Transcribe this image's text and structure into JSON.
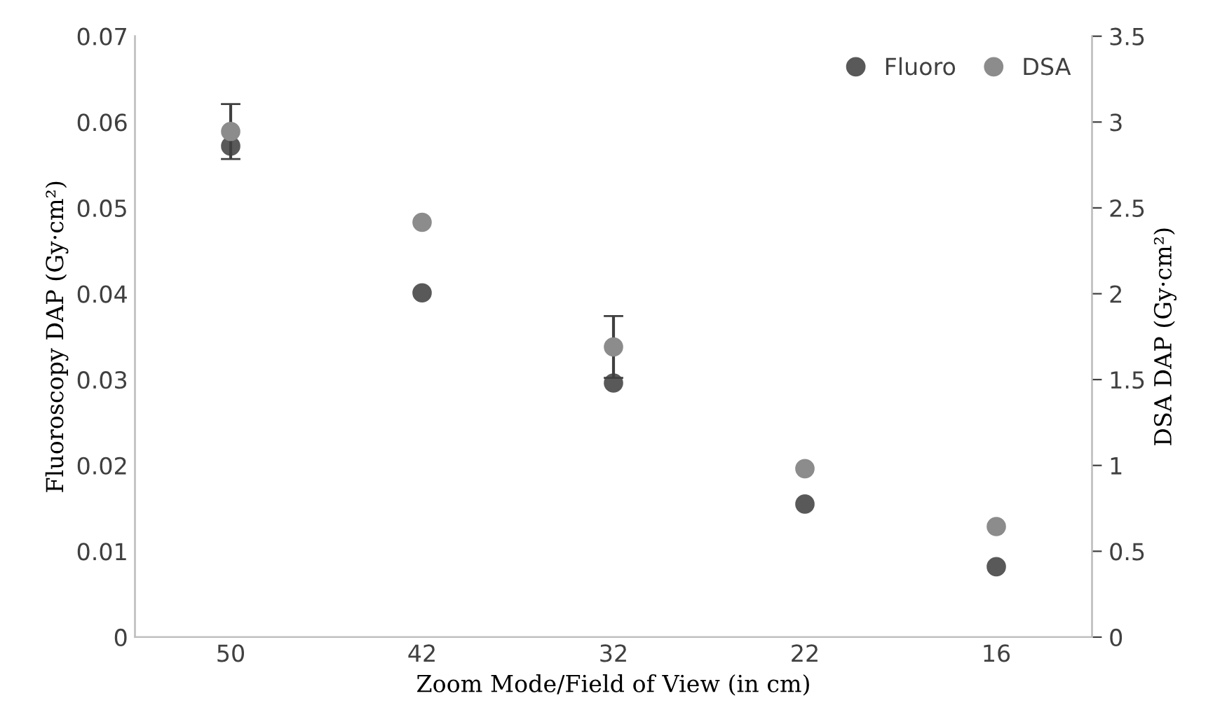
{
  "chart_data": {
    "type": "scatter",
    "xlabel": "Zoom Mode/Field of View (in cm)",
    "ylabel": "Fluoroscopy DAP (Gy·cm²)",
    "y2label": "DSA DAP (Gy·cm²)",
    "categories": [
      "50",
      "42",
      "32",
      "22",
      "16"
    ],
    "series": [
      {
        "name": "Fluoro",
        "color": "#595959",
        "values": [
          0.0572,
          0.0401,
          0.0296,
          0.0155,
          0.0082
        ]
      },
      {
        "name": "DSA",
        "color": "#8c8c8c",
        "axis": "y2",
        "values": [
          2.945,
          2.416,
          1.69,
          0.981,
          0.644
        ],
        "errors": [
          0.16,
          null,
          0.18,
          null,
          null
        ]
      }
    ],
    "ylim": [
      0,
      0.07
    ],
    "yticks": [
      0,
      0.01,
      0.02,
      0.03,
      0.04,
      0.05,
      0.06,
      0.07
    ],
    "y2lim": [
      0,
      3.5
    ],
    "y2ticks": [
      0,
      0.5,
      1,
      1.5,
      2,
      2.5,
      3,
      3.5
    ],
    "grid": false,
    "legend": "top right",
    "marker": "circle"
  }
}
